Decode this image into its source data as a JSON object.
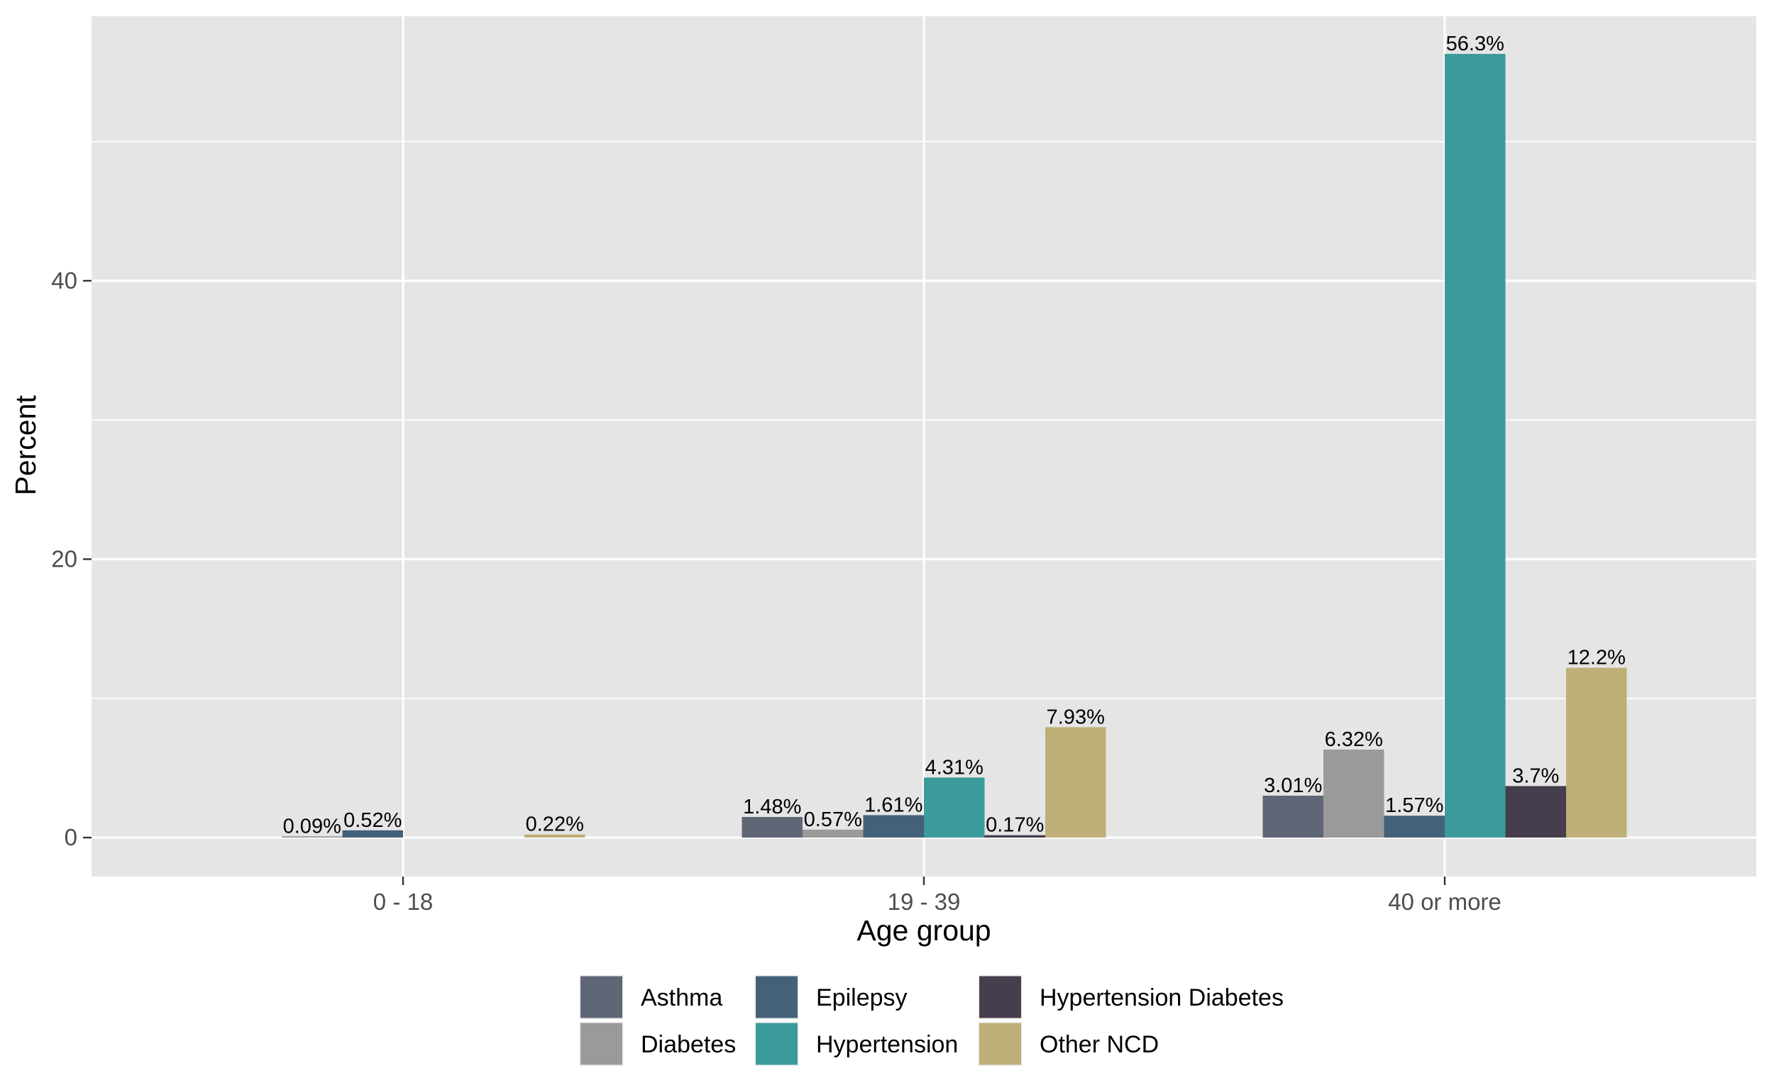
{
  "chart_data": {
    "type": "bar",
    "xlabel": "Age group",
    "ylabel": "Percent",
    "ylim": [
      -2.8,
      59.0
    ],
    "yticks": [
      0,
      20,
      40
    ],
    "grid": true,
    "legend_position": "bottom",
    "categories": [
      "0 - 18",
      "19 - 39",
      "40 or more"
    ],
    "series": [
      {
        "name": "Asthma",
        "color": "#5f6676",
        "values": [
          null,
          1.48,
          3.01
        ],
        "labels": [
          "",
          "1.48%",
          "3.01%"
        ]
      },
      {
        "name": "Diabetes",
        "color": "#9a9a9a",
        "values": [
          0.09,
          0.57,
          6.32
        ],
        "labels": [
          "0.09%",
          "0.57%",
          "6.32%"
        ]
      },
      {
        "name": "Epilepsy",
        "color": "#44617a",
        "values": [
          0.52,
          1.61,
          1.57
        ],
        "labels": [
          "0.52%",
          "1.61%",
          "1.57%"
        ]
      },
      {
        "name": "Hypertension",
        "color": "#3a9b9a",
        "values": [
          null,
          4.31,
          56.3
        ],
        "labels": [
          "",
          "4.31%",
          "56.3%"
        ]
      },
      {
        "name": "Hypertension Diabetes",
        "color": "#463e4c",
        "values": [
          null,
          0.17,
          3.7
        ],
        "labels": [
          "",
          "0.17%",
          "3.7%"
        ]
      },
      {
        "name": "Other NCD",
        "color": "#bfaf78",
        "values": [
          0.22,
          7.93,
          12.2
        ],
        "labels": [
          "0.22%",
          "7.93%",
          "12.2%"
        ]
      }
    ],
    "panel_color": "#e5e5e5",
    "grid_color": "#ffffff"
  }
}
